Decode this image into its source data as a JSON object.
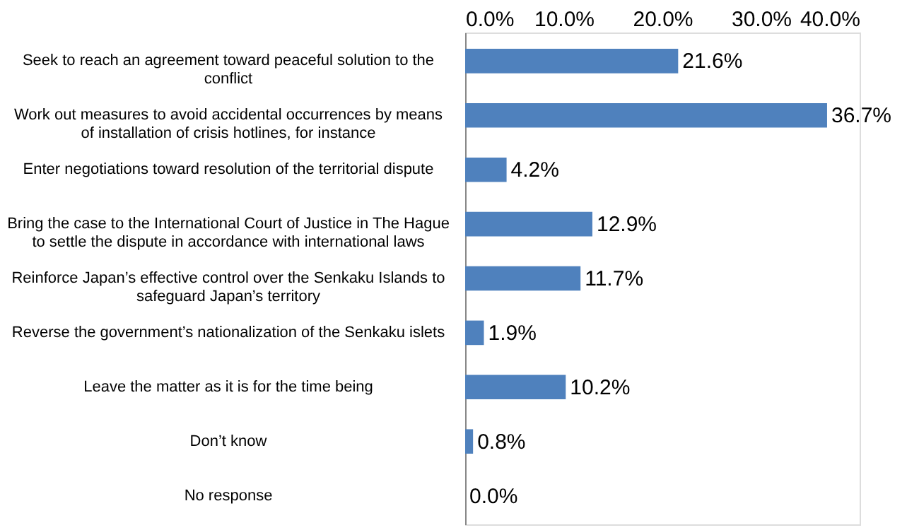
{
  "chart_data": {
    "type": "bar",
    "orientation": "horizontal",
    "categories": [
      "Seek to reach an agreement toward peaceful solution to the\nconflict",
      "Work out measures to avoid accidental occurrences by means\nof installation of crisis hotlines, for instance",
      "Enter negotiations toward resolution of the territorial dispute",
      "Bring the case to the International Court of Justice in The Hague\nto settle the dispute  in accordance with international laws",
      "Reinforce Japan’s effective control over the Senkaku Islands to\nsafeguard Japan’s territory",
      "Reverse the government’s nationalization of the Senkaku islets",
      "Leave the matter as it is for the time being",
      "Don’t know",
      "No response"
    ],
    "values": [
      21.6,
      36.7,
      4.2,
      12.9,
      11.7,
      1.9,
      10.2,
      0.8,
      0.0
    ],
    "value_labels": [
      "21.6%",
      "36.7%",
      "4.2%",
      "12.9%",
      "11.7%",
      "1.9%",
      "10.2%",
      "0.8%",
      "0.0%"
    ],
    "color": "#4f81bd",
    "xlim": [
      0,
      40
    ],
    "xticks": [
      {
        "value": 0,
        "label": "0.0%"
      },
      {
        "value": 10,
        "label": "10.0%"
      },
      {
        "value": 20,
        "label": "20.0%"
      },
      {
        "value": 30,
        "label": "30.0%"
      },
      {
        "value": 40,
        "label": "40.0%"
      }
    ],
    "grid": false
  }
}
